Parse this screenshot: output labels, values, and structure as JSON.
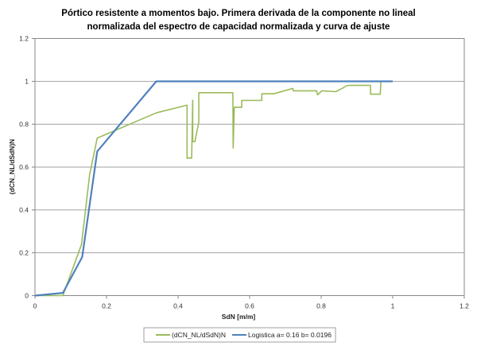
{
  "chart_data": {
    "type": "line",
    "title": "Pórtico resistente a momentos bajo. Primera derivada de la componente no lineal normalizada del espectro de capacidad normalizada y curva de ajuste",
    "title_lines": [
      "Pórtico resistente a momentos bajo. Primera derivada de la componente no lineal",
      "normalizada del espectro de capacidad normalizada y curva de ajuste"
    ],
    "xlabel": "SdN [m/m]",
    "ylabel": "(dCN_NL/dSdN)N",
    "xlim": [
      0,
      1.2
    ],
    "ylim": [
      0,
      1.2
    ],
    "xticks": [
      "0",
      "0.2",
      "0.4",
      "0.6",
      "0.8",
      "1",
      "1.2"
    ],
    "yticks": [
      "0",
      "0.2",
      "0.4",
      "0.6",
      "0.8",
      "1",
      "1.2"
    ],
    "grid": "horizontal",
    "legend_position": "bottom",
    "series": [
      {
        "name": "(dCN_NL/dSdN)N",
        "color": "#9BBB59",
        "x": [
          0,
          0.078,
          0.13,
          0.153,
          0.174,
          0.339,
          0.425,
          0.425,
          0.438,
          0.441,
          0.441,
          0.447,
          0.458,
          0.458,
          0.553,
          0.554,
          0.557,
          0.578,
          0.578,
          0.634,
          0.634,
          0.667,
          0.721,
          0.722,
          0.787,
          0.79,
          0.802,
          0.841,
          0.862,
          0.869,
          0.876,
          0.938,
          0.938,
          0.965,
          0.967
        ],
        "y": [
          0,
          0,
          0.238,
          0.566,
          0.735,
          0.853,
          0.889,
          0.642,
          0.642,
          0.912,
          0.719,
          0.719,
          0.811,
          0.947,
          0.947,
          0.689,
          0.879,
          0.879,
          0.911,
          0.911,
          0.942,
          0.942,
          0.967,
          0.956,
          0.956,
          0.937,
          0.956,
          0.952,
          0.97,
          0.978,
          0.981,
          0.981,
          0.94,
          0.94,
          0.998
        ]
      },
      {
        "name": "Logistica a= 0.16 b= 0.0196",
        "color": "#4F81BD",
        "x": [
          0,
          0.078,
          0.132,
          0.174,
          0.339,
          1.0
        ],
        "y": [
          0,
          0.0125,
          0.18,
          0.673,
          1.0,
          1.0
        ]
      }
    ]
  },
  "legend": {
    "items": [
      {
        "label": "(dCN_NL/dSdN)N",
        "color": "#9BBB59"
      },
      {
        "label": "Logistica a= 0.16 b= 0.0196",
        "color": "#4F81BD"
      }
    ]
  }
}
